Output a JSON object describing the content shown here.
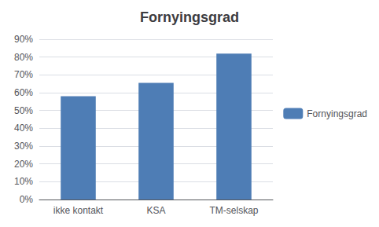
{
  "chart_data": {
    "type": "bar",
    "title": "Fornyingsgrad",
    "categories": [
      "ikke kontakt",
      "KSA",
      "TM-selskap"
    ],
    "series": [
      {
        "name": "Fornyingsgrad",
        "color": "#4E7DB5",
        "values": [
          0.58,
          0.655,
          0.82
        ]
      }
    ],
    "ylim": [
      0,
      0.9
    ],
    "yticks": [
      {
        "value": 0.0,
        "label": "0%"
      },
      {
        "value": 0.1,
        "label": "10%"
      },
      {
        "value": 0.2,
        "label": "20%"
      },
      {
        "value": 0.3,
        "label": "30%"
      },
      {
        "value": 0.4,
        "label": "40%"
      },
      {
        "value": 0.5,
        "label": "50%"
      },
      {
        "value": 0.6,
        "label": "60%"
      },
      {
        "value": 0.7,
        "label": "70%"
      },
      {
        "value": 0.8,
        "label": "80%"
      },
      {
        "value": 0.9,
        "label": "90%"
      }
    ],
    "grid": true,
    "legend": "right"
  }
}
